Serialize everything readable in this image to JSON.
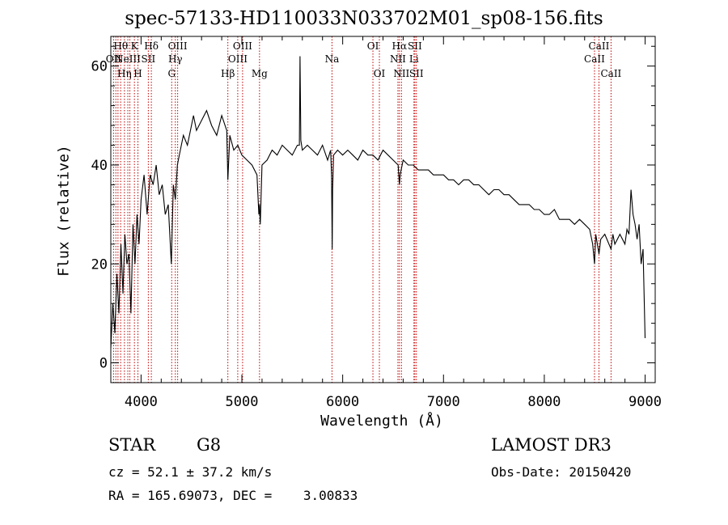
{
  "chart_data": {
    "type": "line",
    "title": "spec-57133-HD110033N033702M01_sp08-156.fits",
    "xlabel": "Wavelength (Å)",
    "ylabel": "Flux (relative)",
    "xlim": [
      3700,
      9100
    ],
    "ylim": [
      -4,
      66
    ],
    "xticks": [
      4000,
      5000,
      6000,
      7000,
      8000,
      9000
    ],
    "yticks": [
      0,
      20,
      40,
      60
    ],
    "series": [
      {
        "name": "flux",
        "x": [
          3700,
          3720,
          3740,
          3760,
          3780,
          3800,
          3820,
          3840,
          3860,
          3880,
          3900,
          3920,
          3940,
          3960,
          3980,
          4000,
          4030,
          4060,
          4090,
          4120,
          4150,
          4180,
          4210,
          4240,
          4270,
          4300,
          4320,
          4340,
          4360,
          4380,
          4420,
          4460,
          4500,
          4520,
          4550,
          4600,
          4650,
          4700,
          4750,
          4800,
          4850,
          4861,
          4880,
          4920,
          4960,
          5000,
          5050,
          5100,
          5150,
          5168,
          5175,
          5183,
          5200,
          5250,
          5300,
          5350,
          5400,
          5450,
          5500,
          5550,
          5570,
          5577,
          5585,
          5600,
          5650,
          5700,
          5750,
          5800,
          5850,
          5880,
          5890,
          5896,
          5900,
          5910,
          5950,
          6000,
          6050,
          6100,
          6150,
          6200,
          6250,
          6300,
          6350,
          6400,
          6450,
          6500,
          6550,
          6563,
          6570,
          6600,
          6650,
          6700,
          6750,
          6800,
          6850,
          6900,
          6950,
          7000,
          7050,
          7100,
          7150,
          7200,
          7250,
          7300,
          7350,
          7400,
          7450,
          7500,
          7550,
          7600,
          7650,
          7700,
          7750,
          7800,
          7850,
          7900,
          7950,
          8000,
          8050,
          8100,
          8150,
          8200,
          8250,
          8300,
          8350,
          8400,
          8450,
          8480,
          8498,
          8510,
          8542,
          8560,
          8600,
          8662,
          8680,
          8700,
          8750,
          8800,
          8820,
          8840,
          8860,
          8880,
          8900,
          8920,
          8940,
          8960,
          8980,
          9000
        ],
        "y": [
          3,
          12,
          6,
          18,
          10,
          24,
          14,
          26,
          20,
          22,
          10,
          28,
          20,
          30,
          24,
          33,
          38,
          30,
          38,
          36,
          40,
          34,
          36,
          30,
          32,
          20,
          36,
          33,
          40,
          42,
          46,
          44,
          48,
          50,
          47,
          49,
          51,
          48,
          46,
          50,
          47,
          37,
          46,
          43,
          44,
          42,
          41,
          40,
          38,
          30,
          32,
          28,
          40,
          41,
          43,
          42,
          44,
          43,
          42,
          44,
          44,
          62,
          45,
          43,
          44,
          43,
          42,
          44,
          41,
          43,
          38,
          23,
          35,
          42,
          43,
          42,
          43,
          42,
          41,
          43,
          42,
          42,
          41,
          43,
          42,
          41,
          40,
          36,
          38,
          41,
          40,
          40,
          39,
          39,
          39,
          38,
          38,
          38,
          37,
          37,
          36,
          37,
          37,
          36,
          36,
          35,
          34,
          35,
          35,
          34,
          34,
          33,
          32,
          32,
          32,
          31,
          31,
          30,
          30,
          31,
          29,
          29,
          29,
          28,
          29,
          28,
          27,
          24,
          20,
          26,
          22,
          25,
          26,
          23,
          26,
          24,
          26,
          24,
          27,
          26,
          35,
          30,
          28,
          25,
          28,
          20,
          23,
          5
        ]
      }
    ],
    "lines": [
      {
        "wl": 3727,
        "label": "OII",
        "row": 2
      },
      {
        "wl": 3750,
        "label": "",
        "row": 0
      },
      {
        "wl": 3771,
        "label": "",
        "row": 0
      },
      {
        "wl": 3798,
        "label": "Hθ",
        "row": 1
      },
      {
        "wl": 3835,
        "label": "Hη",
        "row": 3
      },
      {
        "wl": 3869,
        "label": "NeIII",
        "row": 2
      },
      {
        "wl": 3889,
        "label": "",
        "row": 0
      },
      {
        "wl": 3934,
        "label": "K",
        "row": 1
      },
      {
        "wl": 3969,
        "label": "H",
        "row": 3
      },
      {
        "wl": 4072,
        "label": "SII",
        "row": 2
      },
      {
        "wl": 4102,
        "label": "Hδ",
        "row": 1
      },
      {
        "wl": 4304,
        "label": "G",
        "row": 3
      },
      {
        "wl": 4340,
        "label": "Hγ",
        "row": 2
      },
      {
        "wl": 4363,
        "label": "OIII",
        "row": 1
      },
      {
        "wl": 4861,
        "label": "Hβ",
        "row": 3
      },
      {
        "wl": 4959,
        "label": "OIII",
        "row": 2
      },
      {
        "wl": 5007,
        "label": "OIII",
        "row": 1
      },
      {
        "wl": 5175,
        "label": "Mg",
        "row": 3
      },
      {
        "wl": 5894,
        "label": "Na",
        "row": 2
      },
      {
        "wl": 6300,
        "label": "OI",
        "row": 1
      },
      {
        "wl": 6364,
        "label": "OI",
        "row": 3
      },
      {
        "wl": 6548,
        "label": "NII",
        "row": 2
      },
      {
        "wl": 6563,
        "label": "Hα",
        "row": 1
      },
      {
        "wl": 6583,
        "label": "NII",
        "row": 3
      },
      {
        "wl": 6707,
        "label": "Li",
        "row": 2
      },
      {
        "wl": 6716,
        "label": "SII",
        "row": 1
      },
      {
        "wl": 6731,
        "label": "SII",
        "row": 3
      },
      {
        "wl": 8498,
        "label": "CaII",
        "row": 2
      },
      {
        "wl": 8542,
        "label": "CaII",
        "row": 1
      },
      {
        "wl": 8662,
        "label": "CaII",
        "row": 3
      }
    ]
  },
  "info": {
    "class": "STAR",
    "subclass": "G8",
    "survey": "LAMOST DR3",
    "cz": "cz = 52.1 ± 37.2 km/s",
    "coords": "RA = 165.69073, DEC =    3.00833",
    "obs_date": "Obs-Date: 20150420"
  },
  "colors": {
    "axis": "#000000",
    "line_marker": "#c00000",
    "spectrum": "#000000"
  }
}
